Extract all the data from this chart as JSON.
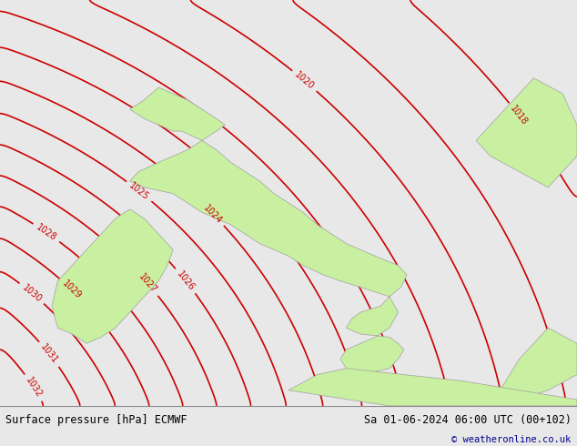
{
  "title_left": "Surface pressure [hPa] ECMWF",
  "title_right": "Sa 01-06-2024 06:00 UTC (00+102)",
  "copyright": "© weatheronline.co.uk",
  "bg_color": "#e8e8e8",
  "land_color": "#c8f0a0",
  "contour_color": "#cc0000",
  "border_color": "#a0a0a0",
  "text_color_title": "#000000",
  "text_color_copyright": "#00008b",
  "footer_bg": "#d8d8d8",
  "contour_levels": [
    1018,
    1019,
    1020,
    1021,
    1022,
    1023,
    1024,
    1025,
    1026,
    1027,
    1028,
    1029,
    1030,
    1031,
    1032
  ],
  "label_levels": [
    1018,
    1020,
    1024,
    1025,
    1026,
    1027,
    1028,
    1029,
    1030,
    1031,
    1032
  ],
  "figsize": [
    6.34,
    4.9
  ],
  "dpi": 100
}
